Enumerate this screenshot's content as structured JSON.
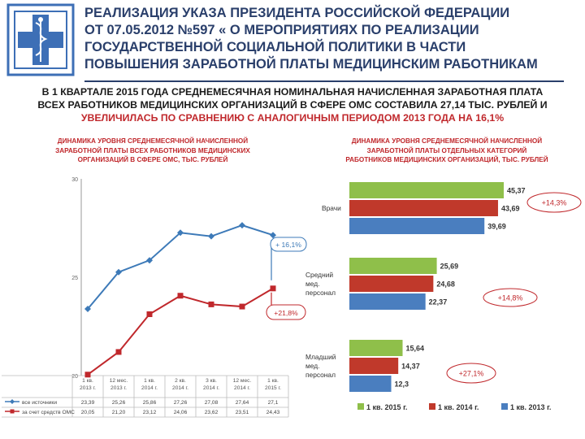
{
  "header": {
    "title_lines": [
      "РЕАЛИЗАЦИЯ УКАЗА ПРЕЗИДЕНТА РОССИЙСКОЙ ФЕДЕРАЦИИ",
      "ОТ 07.05.2012 №597 « О МЕРОПРИЯТИЯХ ПО РЕАЛИЗАЦИИ",
      "ГОСУДАРСТВЕННОЙ СОЦИАЛЬНОЙ ПОЛИТИКИ В ЧАСТИ",
      "ПОВЫШЕНИЯ ЗАРАБОТНОЙ ПЛАТЫ  МЕДИЦИНСКИМ РАБОТНИКАМ"
    ],
    "summary_lines": [
      "В 1 КВАРТАЛЕ 2015 ГОДА СРЕДНЕМЕСЯЧНАЯ НОМИНАЛЬНАЯ НАЧИСЛЕННАЯ ЗАРАБОТНАЯ ПЛАТА",
      "ВСЕХ РАБОТНИКОВ МЕДИЦИНСКИХ ОРГАНИЗАЦИЙ В СФЕРЕ ОМС СОСТАВИЛА 27,14 ТЫС. РУБЛЕЙ И",
      "УВЕЛИЧИЛАСЬ ПО СРАВНЕНИЮ С  АНАЛОГИЧНЫМ ПЕРИОДОМ 2013 ГОДА НА 16,1%"
    ],
    "colors": {
      "title": "#2a3f6b",
      "accent": "#c0282c",
      "logo_blue": "#3d6fb6"
    }
  },
  "chart_data": [
    {
      "type": "line",
      "title_lines": [
        "ДИНАМИКА УРОВНЯ СРЕДНЕМЕСЯЧНОЙ НАЧИСЛЕННОЙ",
        "ЗАРАБОТНОЙ ПЛАТЫ ВСЕХ РАБОТНИКОВ МЕДИЦИНСКИХ",
        "ОРГАНИЗАЦИЙ В СФЕРЕ ОМС, ТЫС. РУБЛЕЙ"
      ],
      "categories": [
        [
          "1 кв.",
          "2013 г."
        ],
        [
          "12 мес.",
          "2013 г."
        ],
        [
          "1 кв.",
          "2014 г."
        ],
        [
          "2 кв.",
          "2014 г."
        ],
        [
          "3 кв.",
          "2014 г."
        ],
        [
          "12 мес.",
          "2014 г."
        ],
        [
          "1 кв.",
          "2015 г."
        ]
      ],
      "yticks": [
        "20",
        "25",
        "30"
      ],
      "ylim": [
        20,
        30
      ],
      "series": [
        {
          "name": "все источники",
          "color": "#3d7ab8",
          "marker": "diamond",
          "values": [
            23.39,
            25.26,
            25.86,
            27.26,
            27.08,
            27.64,
            27.14
          ],
          "labels": [
            "23,39",
            "25,26",
            "25,86",
            "27,26",
            "27,08",
            "27,64",
            "27,1"
          ]
        },
        {
          "name": "за счет средств ОМС",
          "color": "#c0282c",
          "marker": "square",
          "values": [
            20.05,
            21.2,
            23.12,
            24.06,
            23.62,
            23.51,
            24.43
          ],
          "labels": [
            "20,05",
            "21,20",
            "23,12",
            "24,06",
            "23,62",
            "23,51",
            "24,43"
          ]
        }
      ],
      "annotations": [
        {
          "text": "+ 16,1%",
          "color": "#3d7ab8"
        },
        {
          "text": "+21,8%",
          "color": "#c0282c"
        }
      ],
      "grid": false
    },
    {
      "type": "bar",
      "orientation": "horizontal",
      "title_lines": [
        "ДИНАМИКА УРОВНЯ СРЕДНЕМЕСЯЧНОЙ НАЧИСЛЕННОЙ",
        "ЗАРАБОТНОЙ ПЛАТЫ ОТДЕЛЬНЫХ КАТЕГОРИЙ",
        "РАБОТНИКОВ МЕДИЦИНСКИХ ОРГАНИЗАЦИЙ, ТЫС. РУБЛЕЙ"
      ],
      "categories": [
        {
          "label_lines": [
            "Врачи"
          ],
          "growth": "+14,3%"
        },
        {
          "label_lines": [
            "Средний",
            "мед.",
            "персонал"
          ],
          "growth": "+14,8%"
        },
        {
          "label_lines": [
            "Младший",
            "мед.",
            "персонал"
          ],
          "growth": "+27,1%"
        }
      ],
      "series": [
        {
          "name": "1 кв. 2015 г.",
          "color": "#8fbf4a",
          "values": [
            45.37,
            25.69,
            15.64
          ],
          "labels": [
            "45,37",
            "25,69",
            "15,64"
          ]
        },
        {
          "name": "1 кв. 2014 г.",
          "color": "#c0392b",
          "values": [
            43.69,
            24.68,
            14.37
          ],
          "labels": [
            "43,69",
            "24,68",
            "14,37"
          ]
        },
        {
          "name": "1 кв. 2013 г.",
          "color": "#4a7ebf",
          "values": [
            39.69,
            22.37,
            12.3
          ],
          "labels": [
            "39,69",
            "22,37",
            "12,3"
          ]
        }
      ],
      "legend_position": "bottom"
    }
  ]
}
